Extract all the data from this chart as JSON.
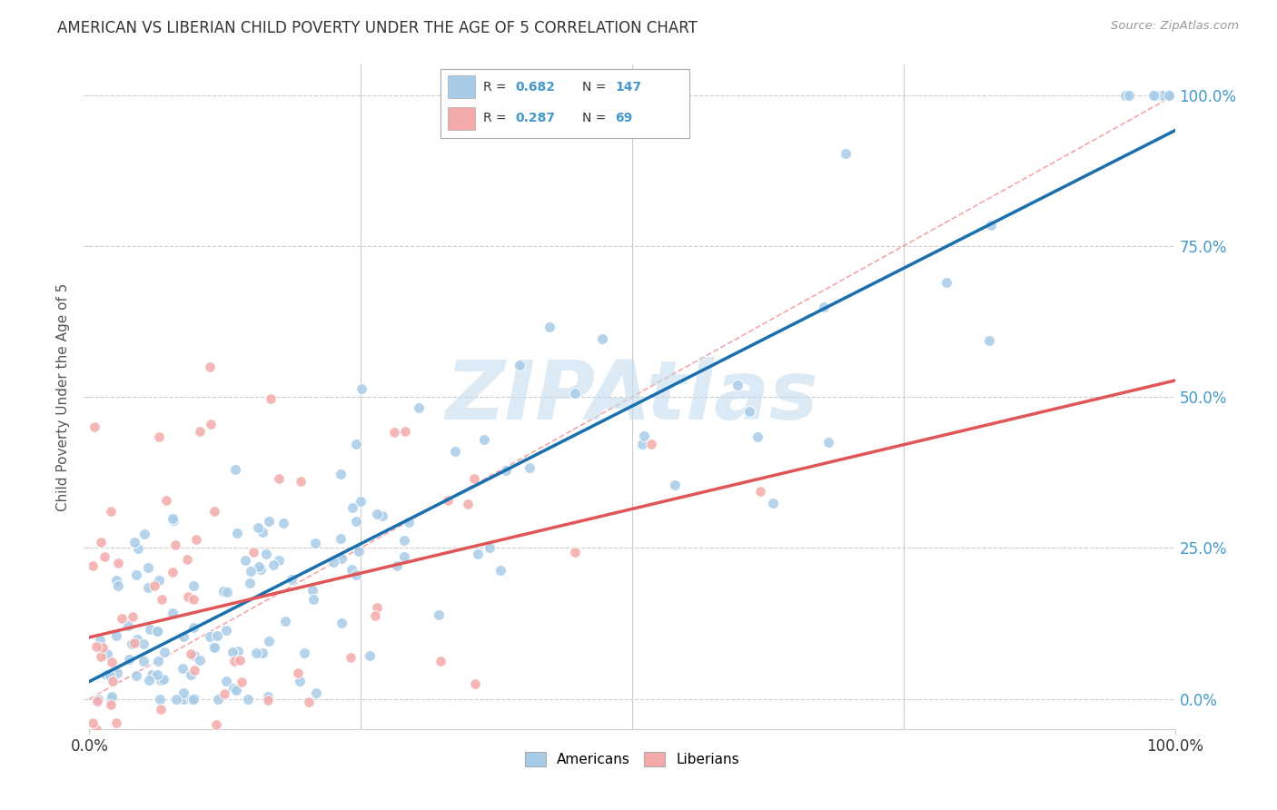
{
  "title": "AMERICAN VS LIBERIAN CHILD POVERTY UNDER THE AGE OF 5 CORRELATION CHART",
  "source": "Source: ZipAtlas.com",
  "ylabel": "Child Poverty Under the Age of 5",
  "american_R": 0.682,
  "american_N": 147,
  "liberian_R": 0.287,
  "liberian_N": 69,
  "american_color": "#a8cce8",
  "liberian_color": "#f4aaaa",
  "american_line_color": "#1a6faf",
  "liberian_line_color": "#e05555",
  "diagonal_color": "#f08080",
  "watermark_color": "#c5ddf0",
  "background_color": "#ffffff",
  "grid_color": "#cccccc",
  "title_color": "#333333",
  "right_axis_color": "#4499cc",
  "xlim": [
    0,
    1.0
  ],
  "ylim": [
    -0.05,
    1.05
  ],
  "plot_ylim": [
    0,
    1.0
  ],
  "xtick_positions": [
    0.0,
    1.0
  ],
  "xtick_labels": [
    "0.0%",
    "100.0%"
  ],
  "ytick_positions": [
    0.0,
    0.25,
    0.5,
    0.75,
    1.0
  ],
  "ytick_labels_right": [
    "0.0%",
    "25.0%",
    "50.0%",
    "75.0%",
    "100.0%"
  ],
  "legend_R1": "0.682",
  "legend_N1": "147",
  "legend_R2": "0.287",
  "legend_N2": "69"
}
